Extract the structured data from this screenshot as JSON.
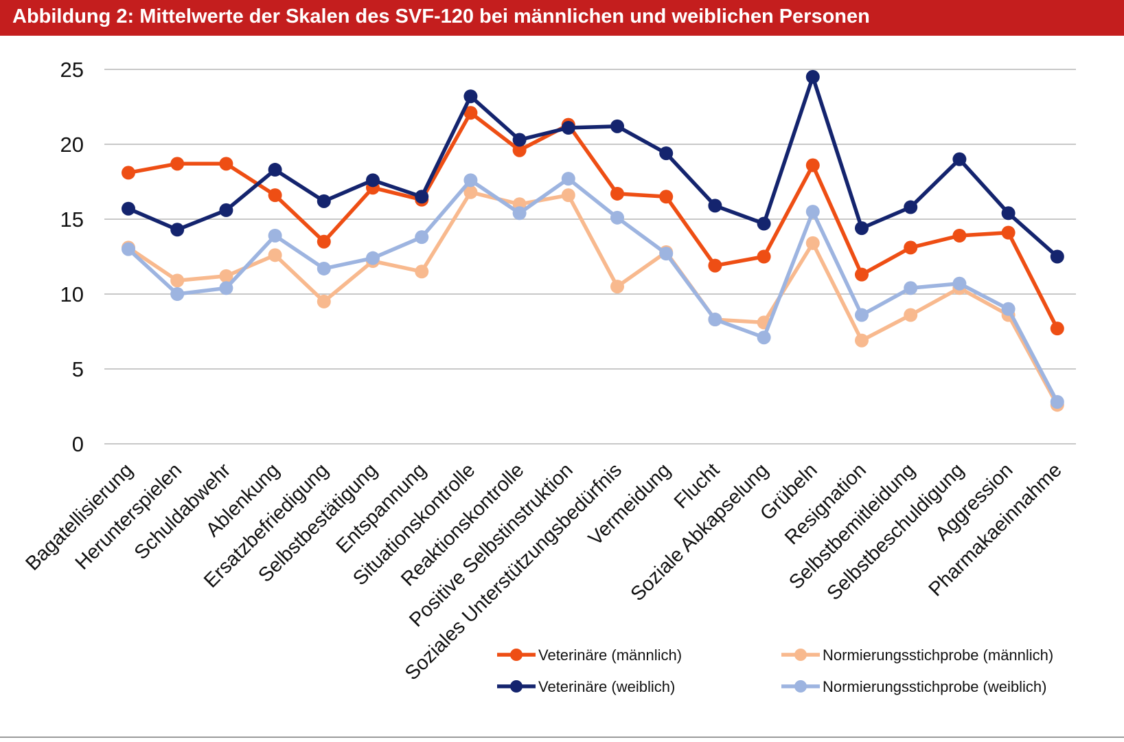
{
  "header": {
    "title": "Abbildung 2: Mittelwerte der Skalen des SVF-120 bei männlichen und weiblichen Personen"
  },
  "colors": {
    "title_bar": "#c41e1e",
    "title_text": "#ffffff",
    "grid": "#c8c8c8",
    "tick_text": "#111111"
  },
  "chart_data": {
    "type": "line",
    "title": "Abbildung 2: Mittelwerte der Skalen des SVF-120 bei männlichen und weiblichen Personen",
    "xlabel": "",
    "ylabel": "",
    "ylim": [
      0,
      25
    ],
    "yticks": [
      0,
      5,
      10,
      15,
      20,
      25
    ],
    "grid": true,
    "legend_position": "bottom-right",
    "categories": [
      "Bagatellisierung",
      "Herunterspielen",
      "Schuldabwehr",
      "Ablenkung",
      "Ersatzbefriedigung",
      "Selbstbestätigung",
      "Entspannung",
      "Situationskontrolle",
      "Reaktionskontrolle",
      "Positive Selbstinstruktion",
      "Soziales Unterstützungsbedürfnis",
      "Vermeidung",
      "Flucht",
      "Soziale Abkapselung",
      "Grübeln",
      "Resignation",
      "Selbstbemitleidung",
      "Selbstbeschuldigung",
      "Aggression",
      "Pharmakaeinnahme"
    ],
    "series": [
      {
        "name": "Normierungsstichprobe (männlich)",
        "color": "#f8b98e",
        "values": [
          13.1,
          10.9,
          11.2,
          12.6,
          9.5,
          12.2,
          11.5,
          16.8,
          16.0,
          16.6,
          10.5,
          12.8,
          8.3,
          8.1,
          13.4,
          6.9,
          8.6,
          10.4,
          8.6,
          2.6
        ]
      },
      {
        "name": "Normierungsstichprobe (weiblich)",
        "color": "#9db4e0",
        "values": [
          13.0,
          10.0,
          10.4,
          13.9,
          11.7,
          12.4,
          13.8,
          17.6,
          15.4,
          17.7,
          15.1,
          12.7,
          8.3,
          7.1,
          15.5,
          8.6,
          10.4,
          10.7,
          9.0,
          2.8
        ]
      },
      {
        "name": "Veterinäre (männlich)",
        "color": "#ee4e14",
        "values": [
          18.1,
          18.7,
          18.7,
          16.6,
          13.5,
          17.1,
          16.3,
          22.1,
          19.6,
          21.3,
          16.7,
          16.5,
          11.9,
          12.5,
          18.6,
          11.3,
          13.1,
          13.9,
          14.1,
          7.7
        ]
      },
      {
        "name": "Veterinäre (weiblich)",
        "color": "#14246e",
        "values": [
          15.7,
          14.3,
          15.6,
          18.3,
          16.2,
          17.6,
          16.5,
          23.2,
          20.3,
          21.1,
          21.2,
          19.4,
          15.9,
          14.7,
          24.5,
          14.4,
          15.8,
          19.0,
          15.4,
          12.5
        ]
      }
    ],
    "legend": [
      {
        "label": "Veterinäre (männlich)",
        "color": "#ee4e14"
      },
      {
        "label": "Normierungsstichprobe (männlich)",
        "color": "#f8b98e"
      },
      {
        "label": "Veterinäre (weiblich)",
        "color": "#14246e"
      },
      {
        "label": "Normierungsstichprobe (weiblich)",
        "color": "#9db4e0"
      }
    ]
  }
}
